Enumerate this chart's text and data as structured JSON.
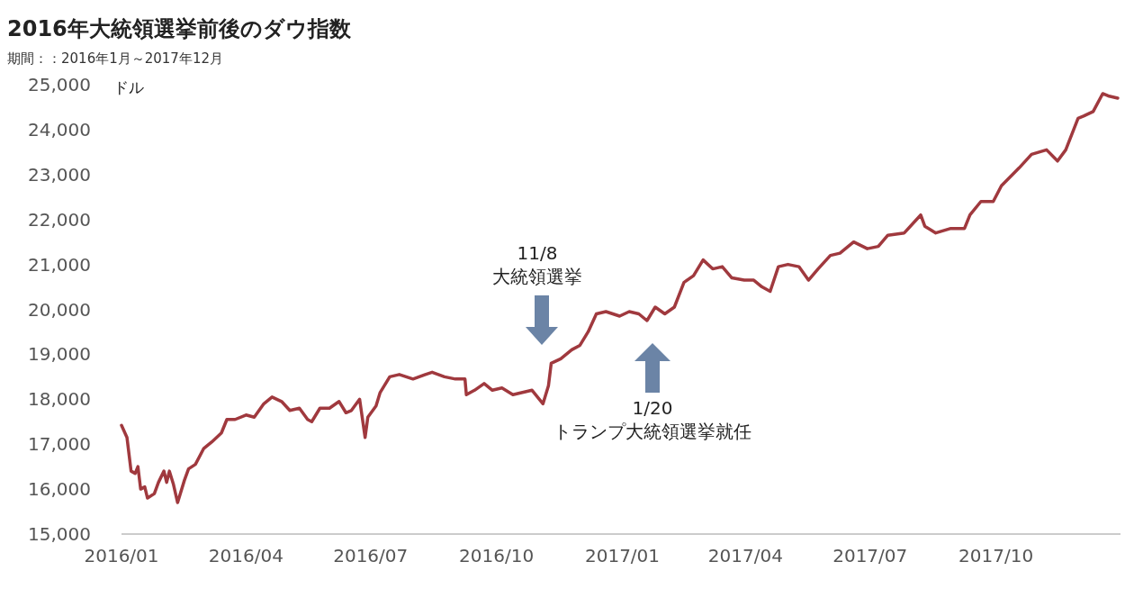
{
  "chart_data": {
    "type": "line",
    "title": "2016年大統領選挙前後のダウ指数",
    "subtitle": "期間：：2016年1月～2017年12月",
    "ylabel": "ドル",
    "xlim": [
      "2016-01-01",
      "2017-12-31"
    ],
    "xticks": [
      {
        "value": "2016-01-01",
        "label": "2016/01"
      },
      {
        "value": "2016-04-01",
        "label": "2016/04"
      },
      {
        "value": "2016-07-01",
        "label": "2016/07"
      },
      {
        "value": "2016-10-01",
        "label": "2016/10"
      },
      {
        "value": "2017-01-01",
        "label": "2017/01"
      },
      {
        "value": "2017-04-01",
        "label": "2017/04"
      },
      {
        "value": "2017-07-01",
        "label": "2017/07"
      },
      {
        "value": "2017-10-01",
        "label": "2017/10"
      }
    ],
    "ylim": [
      15000,
      25000
    ],
    "yticks": [
      {
        "value": 15000,
        "label": "15,000"
      },
      {
        "value": 16000,
        "label": "16,000"
      },
      {
        "value": 17000,
        "label": "17,000"
      },
      {
        "value": 18000,
        "label": "18,000"
      },
      {
        "value": 19000,
        "label": "19,000"
      },
      {
        "value": 20000,
        "label": "20,000"
      },
      {
        "value": 21000,
        "label": "21,000"
      },
      {
        "value": 22000,
        "label": "22,000"
      },
      {
        "value": 23000,
        "label": "23,000"
      },
      {
        "value": 24000,
        "label": "24,000"
      },
      {
        "value": 25000,
        "label": "25,000"
      }
    ],
    "grid": false,
    "marker": "none",
    "line_style": "solid",
    "x": [
      "2016-01-01",
      "2016-01-05",
      "2016-01-08",
      "2016-01-11",
      "2016-01-13",
      "2016-01-15",
      "2016-01-18",
      "2016-01-20",
      "2016-01-25",
      "2016-01-28",
      "2016-02-01",
      "2016-02-03",
      "2016-02-05",
      "2016-02-08",
      "2016-02-11",
      "2016-02-16",
      "2016-02-19",
      "2016-02-24",
      "2016-03-01",
      "2016-03-07",
      "2016-03-14",
      "2016-03-18",
      "2016-03-24",
      "2016-04-01",
      "2016-04-07",
      "2016-04-14",
      "2016-04-20",
      "2016-04-27",
      "2016-05-03",
      "2016-05-10",
      "2016-05-16",
      "2016-05-19",
      "2016-05-25",
      "2016-06-01",
      "2016-06-08",
      "2016-06-13",
      "2016-06-17",
      "2016-06-23",
      "2016-06-27",
      "2016-06-29",
      "2016-07-05",
      "2016-07-08",
      "2016-07-12",
      "2016-07-15",
      "2016-07-22",
      "2016-08-01",
      "2016-08-10",
      "2016-08-15",
      "2016-08-24",
      "2016-09-01",
      "2016-09-08",
      "2016-09-09",
      "2016-09-15",
      "2016-09-22",
      "2016-09-28",
      "2016-10-05",
      "2016-10-13",
      "2016-10-20",
      "2016-10-27",
      "2016-11-04",
      "2016-11-08",
      "2016-11-10",
      "2016-11-17",
      "2016-11-25",
      "2016-12-01",
      "2016-12-07",
      "2016-12-13",
      "2016-12-20",
      "2016-12-30",
      "2017-01-06",
      "2017-01-13",
      "2017-01-19",
      "2017-01-25",
      "2017-02-01",
      "2017-02-08",
      "2017-02-15",
      "2017-02-22",
      "2017-03-01",
      "2017-03-08",
      "2017-03-15",
      "2017-03-22",
      "2017-03-31",
      "2017-04-07",
      "2017-04-13",
      "2017-04-19",
      "2017-04-25",
      "2017-05-02",
      "2017-05-10",
      "2017-05-17",
      "2017-05-24",
      "2017-06-02",
      "2017-06-09",
      "2017-06-19",
      "2017-06-29",
      "2017-07-07",
      "2017-07-14",
      "2017-07-26",
      "2017-08-07",
      "2017-08-10",
      "2017-08-18",
      "2017-08-29",
      "2017-09-08",
      "2017-09-12",
      "2017-09-20",
      "2017-09-29",
      "2017-10-05",
      "2017-10-18",
      "2017-10-27",
      "2017-11-07",
      "2017-11-15",
      "2017-11-21",
      "2017-11-30",
      "2017-12-04",
      "2017-12-11",
      "2017-12-18",
      "2017-12-22",
      "2017-12-29"
    ],
    "series": [
      {
        "color": "#a0393e",
        "values": [
          17420,
          17150,
          16400,
          16350,
          16500,
          16000,
          16050,
          15800,
          15900,
          16150,
          16400,
          16150,
          16400,
          16100,
          15700,
          16200,
          16450,
          16550,
          16900,
          17050,
          17250,
          17550,
          17550,
          17650,
          17600,
          17900,
          18050,
          17950,
          17750,
          17800,
          17550,
          17500,
          17800,
          17800,
          17950,
          17700,
          17750,
          18000,
          17150,
          17600,
          17850,
          18150,
          18350,
          18500,
          18550,
          18450,
          18550,
          18600,
          18500,
          18450,
          18450,
          18100,
          18200,
          18350,
          18200,
          18250,
          18100,
          18150,
          18200,
          17900,
          18300,
          18800,
          18900,
          19100,
          19200,
          19500,
          19900,
          19950,
          19850,
          19950,
          19900,
          19750,
          20050,
          19900,
          20050,
          20600,
          20750,
          21100,
          20900,
          20950,
          20700,
          20650,
          20650,
          20500,
          20400,
          20950,
          21000,
          20950,
          20650,
          20900,
          21200,
          21250,
          21500,
          21350,
          21400,
          21650,
          21700,
          22100,
          21850,
          21700,
          21800,
          21800,
          22100,
          22400,
          22400,
          22750,
          23150,
          23450,
          23550,
          23300,
          23550,
          24250,
          24300,
          24400,
          24800,
          24750,
          24700
        ]
      }
    ],
    "annotations": [
      "11/8\n大統領選挙",
      "1/20\nトランプ大統領選挙就任"
    ]
  }
}
